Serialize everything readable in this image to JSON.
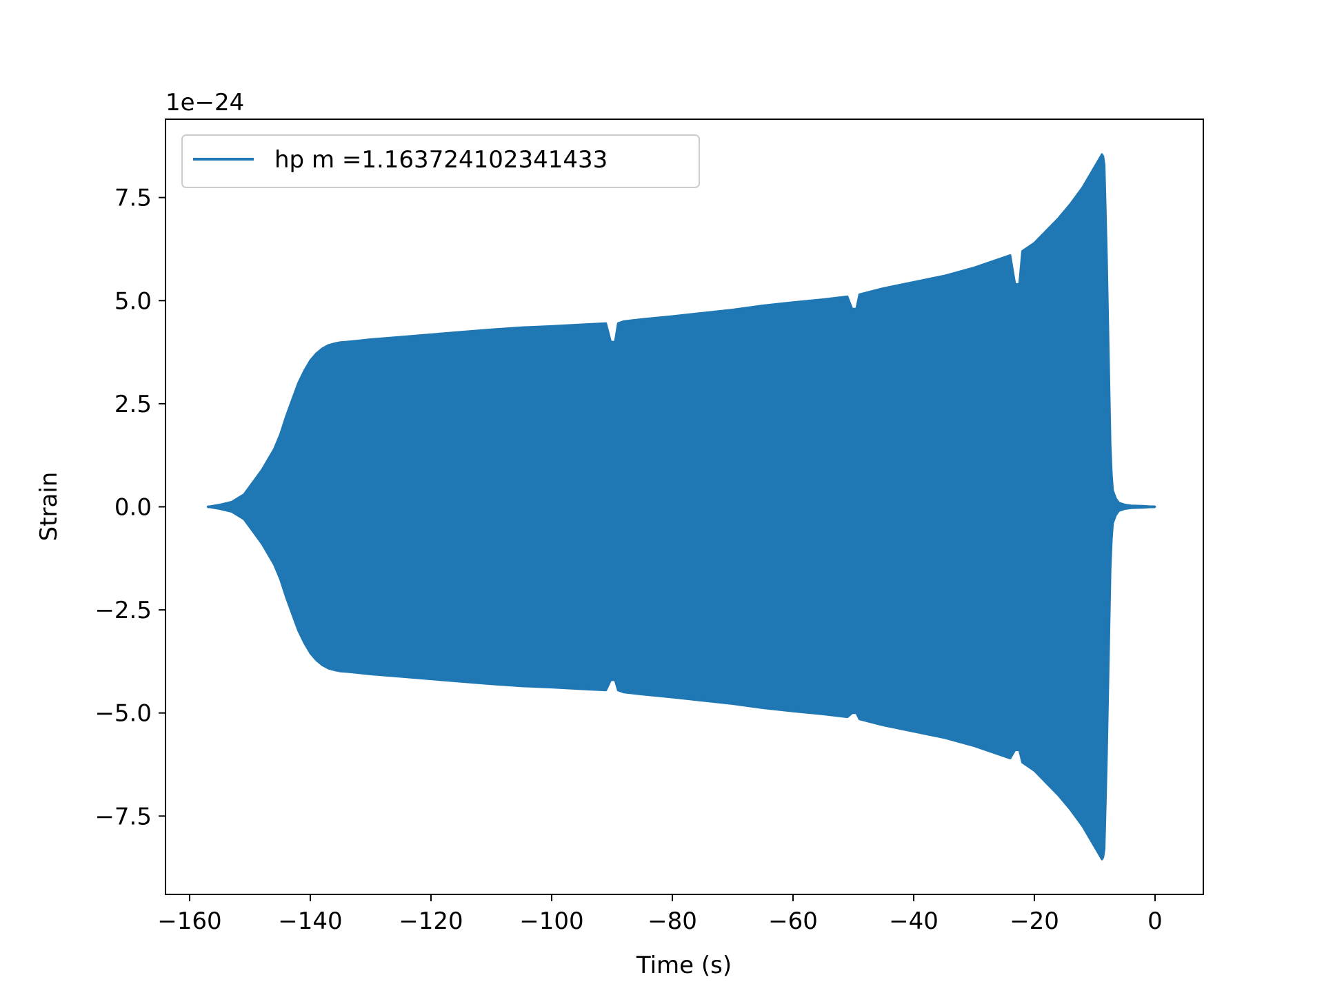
{
  "chart_data": {
    "type": "line",
    "title": "",
    "xlabel": "Time (s)",
    "ylabel": "Strain",
    "y_offset_label": "1e−24",
    "y_scale_factor": 1e-24,
    "xlim": [
      -164,
      8
    ],
    "ylim": [
      -9.4,
      9.4
    ],
    "x_ticks": [
      -160,
      -140,
      -120,
      -100,
      -80,
      -60,
      -40,
      -20,
      0
    ],
    "x_tick_labels": [
      "−160",
      "−140",
      "−120",
      "−100",
      "−80",
      "−60",
      "−40",
      "−20",
      "0"
    ],
    "y_ticks": [
      -7.5,
      -5.0,
      -2.5,
      0.0,
      2.5,
      5.0,
      7.5
    ],
    "y_tick_labels": [
      "−7.5",
      "−5.0",
      "−2.5",
      "0.0",
      "2.5",
      "5.0",
      "7.5"
    ],
    "grid": false,
    "legend_position": "upper-left",
    "series": [
      {
        "name": "hp m =1.163724102341433",
        "color": "#1f77b4",
        "description_units": "strain amplitude envelope (units of 1e-24)",
        "envelope_upper": {
          "x": [
            -157,
            -155,
            -153,
            -151,
            -149.5,
            -148,
            -147,
            -146,
            -145,
            -144,
            -143,
            -142,
            -141,
            -140,
            -139,
            -138,
            -137,
            -136,
            -135,
            -134,
            -132,
            -130,
            -125,
            -120,
            -115,
            -110,
            -105,
            -100,
            -95,
            -91,
            -90.2,
            -89.5,
            -89,
            -88,
            -85,
            -80,
            -75,
            -70,
            -65,
            -60,
            -55,
            -51,
            -50.2,
            -49.5,
            -49,
            -45,
            -40,
            -35,
            -30,
            -25,
            -24,
            -23.2,
            -22.5,
            -22,
            -20,
            -18,
            -16,
            -14,
            -12,
            -11,
            -10,
            -9,
            -8.8,
            -8.6,
            -8.4,
            -8.2,
            -8,
            -7.8,
            -7.6,
            -7.4,
            -7.2,
            -7,
            -6.5,
            -6,
            -5,
            -4,
            -2,
            0
          ],
          "y": [
            0.0,
            0.05,
            0.12,
            0.3,
            0.6,
            0.9,
            1.15,
            1.4,
            1.75,
            2.2,
            2.6,
            3.0,
            3.3,
            3.55,
            3.72,
            3.84,
            3.92,
            3.96,
            3.99,
            4.0,
            4.03,
            4.06,
            4.12,
            4.18,
            4.24,
            4.3,
            4.35,
            4.38,
            4.42,
            4.45,
            4.0,
            4.0,
            4.45,
            4.5,
            4.55,
            4.62,
            4.7,
            4.78,
            4.88,
            4.96,
            5.03,
            5.1,
            4.8,
            4.8,
            5.15,
            5.3,
            5.45,
            5.6,
            5.8,
            6.05,
            6.1,
            5.4,
            5.4,
            6.2,
            6.4,
            6.7,
            7.0,
            7.35,
            7.75,
            8.0,
            8.25,
            8.5,
            8.55,
            8.5,
            8.3,
            7.2,
            6.0,
            4.5,
            3.0,
            1.5,
            0.8,
            0.4,
            0.2,
            0.1,
            0.05,
            0.03,
            0.02,
            0.0
          ]
        },
        "envelope_lower": {
          "x": [
            -157,
            -155,
            -153,
            -151,
            -149.5,
            -148,
            -147,
            -146,
            -145,
            -144,
            -143,
            -142,
            -141,
            -140,
            -139,
            -138,
            -137,
            -136,
            -135,
            -134,
            -132,
            -130,
            -125,
            -120,
            -115,
            -110,
            -105,
            -100,
            -95,
            -91,
            -90.2,
            -89.5,
            -89,
            -88,
            -85,
            -80,
            -75,
            -70,
            -65,
            -60,
            -55,
            -51,
            -50.2,
            -49.5,
            -49,
            -45,
            -40,
            -35,
            -30,
            -25,
            -24,
            -23.2,
            -22.5,
            -22,
            -20,
            -18,
            -16,
            -14,
            -12,
            -11,
            -10,
            -9,
            -8.8,
            -8.6,
            -8.4,
            -8.2,
            -8,
            -7.8,
            -7.6,
            -7.4,
            -7.2,
            -7,
            -6.5,
            -6,
            -5,
            -4,
            -2,
            0
          ],
          "y": [
            0.0,
            -0.05,
            -0.12,
            -0.3,
            -0.6,
            -0.9,
            -1.15,
            -1.4,
            -1.75,
            -2.2,
            -2.6,
            -3.0,
            -3.3,
            -3.55,
            -3.72,
            -3.84,
            -3.92,
            -3.96,
            -3.99,
            -4.0,
            -4.03,
            -4.06,
            -4.12,
            -4.18,
            -4.24,
            -4.3,
            -4.35,
            -4.38,
            -4.42,
            -4.45,
            -4.2,
            -4.2,
            -4.45,
            -4.5,
            -4.55,
            -4.62,
            -4.7,
            -4.78,
            -4.88,
            -4.96,
            -5.03,
            -5.1,
            -5.0,
            -5.0,
            -5.15,
            -5.3,
            -5.45,
            -5.6,
            -5.8,
            -6.05,
            -6.1,
            -5.9,
            -5.9,
            -6.2,
            -6.4,
            -6.7,
            -7.0,
            -7.35,
            -7.75,
            -8.0,
            -8.25,
            -8.5,
            -8.55,
            -8.5,
            -8.3,
            -7.2,
            -6.0,
            -4.5,
            -3.0,
            -1.5,
            -0.8,
            -0.4,
            -0.2,
            -0.1,
            -0.05,
            -0.03,
            -0.02,
            0.0
          ]
        }
      }
    ]
  }
}
